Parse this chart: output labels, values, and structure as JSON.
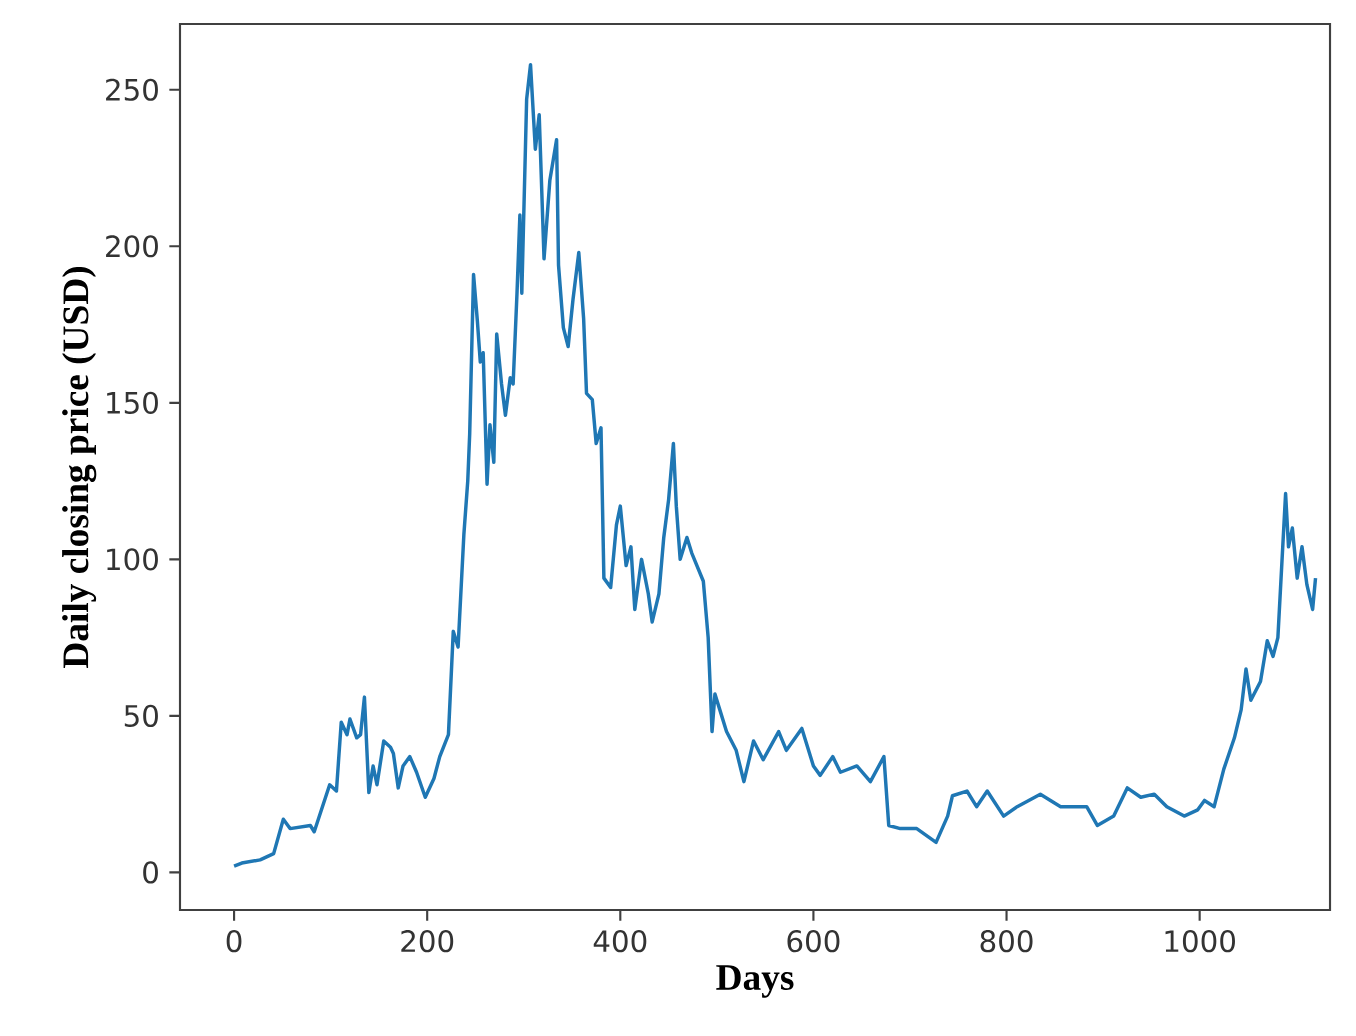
{
  "chart_data": {
    "type": "line",
    "xlabel": "Days",
    "ylabel": "Daily closing price (USD)",
    "color": "#1f77b4",
    "grid": false,
    "marker": "none",
    "line_style": "solid",
    "x": [
      0,
      8,
      27,
      41,
      51,
      58,
      79,
      83,
      99,
      106,
      111,
      117,
      120,
      127,
      131,
      135,
      139.6,
      144,
      148,
      155,
      162,
      165,
      170,
      175,
      182,
      189,
      198,
      207,
      213,
      222,
      227,
      232,
      238,
      242,
      244,
      248,
      252,
      255,
      258,
      262,
      265,
      269,
      272,
      277,
      281,
      286,
      289,
      293,
      296,
      298,
      303,
      307,
      312,
      316,
      321,
      327,
      334,
      336,
      341,
      346,
      351,
      357,
      362,
      365,
      371,
      375,
      380,
      383,
      390,
      396,
      400,
      406,
      411,
      415,
      422,
      429,
      433,
      440,
      445,
      450,
      455,
      458,
      462,
      469,
      474,
      486,
      491,
      495,
      498,
      503,
      510,
      520,
      528,
      538,
      548,
      564,
      572,
      588,
      600,
      607,
      620,
      628,
      645,
      659,
      673,
      678,
      690,
      707,
      727,
      739,
      744,
      759,
      769,
      780,
      797,
      811,
      835,
      856,
      883,
      894,
      911,
      925,
      939,
      953,
      966,
      984,
      998,
      1005,
      1015,
      1025,
      1036,
      1043,
      1048,
      1053,
      1063,
      1070,
      1076,
      1081,
      1085,
      1089,
      1092,
      1096,
      1101,
      1106,
      1111,
      1117,
      1120
    ],
    "values": [
      2,
      3,
      4,
      6,
      17,
      14,
      15,
      13,
      28,
      26,
      48,
      44,
      49,
      43,
      44,
      56,
      25.5,
      34,
      28,
      42,
      40,
      38,
      27,
      34,
      37,
      32,
      24,
      30,
      37,
      44,
      77,
      72,
      108,
      125,
      140,
      191,
      176,
      163,
      166,
      124,
      143,
      131,
      172,
      156,
      146,
      158,
      156,
      185,
      210,
      185,
      247,
      258,
      231,
      242,
      196,
      221,
      234,
      194,
      174,
      168,
      183,
      198,
      177,
      153,
      151,
      137,
      142,
      94,
      91,
      111,
      117,
      98,
      104,
      84,
      100,
      89,
      80,
      89,
      107,
      119,
      137,
      117,
      100,
      107,
      102,
      93,
      75,
      45,
      57,
      52,
      45,
      39,
      29,
      42,
      36,
      45,
      39,
      46,
      34,
      31,
      37,
      32,
      34,
      29,
      37,
      15,
      14,
      14,
      9.6,
      18,
      24.5,
      26,
      21,
      26,
      18,
      21,
      25,
      21,
      21,
      15,
      18,
      27,
      24,
      25,
      21,
      18,
      20,
      23,
      21,
      33,
      43,
      52,
      65,
      55,
      61,
      74,
      69,
      75,
      98,
      121,
      104,
      110,
      94,
      104,
      92,
      84,
      94
    ],
    "xlim": [
      -56,
      1135
    ],
    "ylim": [
      -12,
      271
    ],
    "xticks": [
      0,
      200,
      400,
      600,
      800,
      1000
    ],
    "yticks": [
      0,
      50,
      100,
      150,
      200,
      250
    ]
  }
}
